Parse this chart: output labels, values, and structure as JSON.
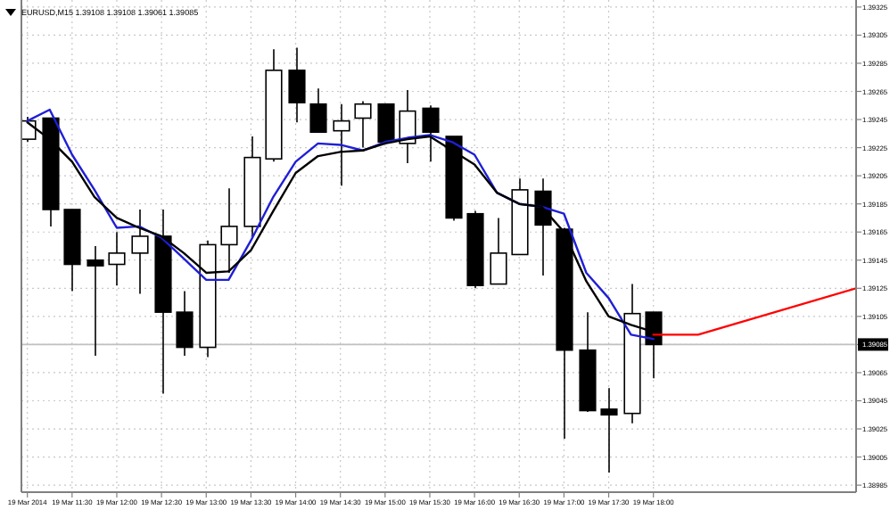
{
  "chart_data": {
    "type": "candlestick",
    "title": "EURUSD,M15  1.39108 1.39108 1.39061 1.39085",
    "x": [
      "2014-03-19T11:00",
      "2014-03-19T11:15",
      "2014-03-19T11:30",
      "2014-03-19T11:45",
      "2014-03-19T12:00",
      "2014-03-19T12:15",
      "2014-03-19T12:30",
      "2014-03-19T12:45",
      "2014-03-19T13:00",
      "2014-03-19T13:15",
      "2014-03-19T13:30",
      "2014-03-19T13:45",
      "2014-03-19T14:00",
      "2014-03-19T14:15",
      "2014-03-19T14:30",
      "2014-03-19T14:45",
      "2014-03-19T15:00",
      "2014-03-19T15:15",
      "2014-03-19T15:30",
      "2014-03-19T15:45",
      "2014-03-19T16:00",
      "2014-03-19T16:15",
      "2014-03-19T16:30",
      "2014-03-19T16:45",
      "2014-03-19T17:00",
      "2014-03-19T17:15",
      "2014-03-19T17:30",
      "2014-03-19T17:45",
      "2014-03-19T18:00"
    ],
    "ohlc": [
      [
        1.39231,
        1.39247,
        1.39229,
        1.39244
      ],
      [
        1.39246,
        1.39246,
        1.39169,
        1.39181
      ],
      [
        1.39181,
        1.39181,
        1.39123,
        1.39142
      ],
      [
        1.39145,
        1.39155,
        1.39077,
        1.39141
      ],
      [
        1.39142,
        1.39165,
        1.39127,
        1.3915
      ],
      [
        1.3915,
        1.39181,
        1.39121,
        1.39162
      ],
      [
        1.39162,
        1.39181,
        1.3905,
        1.39108
      ],
      [
        1.39108,
        1.39123,
        1.39077,
        1.39083
      ],
      [
        1.39083,
        1.39159,
        1.39076,
        1.39156
      ],
      [
        1.39156,
        1.39196,
        1.39136,
        1.39169
      ],
      [
        1.39169,
        1.39233,
        1.39162,
        1.39218
      ],
      [
        1.39217,
        1.39295,
        1.39215,
        1.3928
      ],
      [
        1.3928,
        1.39296,
        1.39243,
        1.39257
      ],
      [
        1.39256,
        1.39267,
        1.39236,
        1.39236
      ],
      [
        1.39237,
        1.39256,
        1.39198,
        1.39244
      ],
      [
        1.39246,
        1.39258,
        1.39225,
        1.39256
      ],
      [
        1.39256,
        1.39256,
        1.39229,
        1.39229
      ],
      [
        1.39228,
        1.39266,
        1.39214,
        1.39251
      ],
      [
        1.39253,
        1.39255,
        1.39215,
        1.39236
      ],
      [
        1.39233,
        1.39233,
        1.39173,
        1.39175
      ],
      [
        1.39178,
        1.3918,
        1.39125,
        1.39127
      ],
      [
        1.39128,
        1.39175,
        1.39128,
        1.3915
      ],
      [
        1.39149,
        1.39203,
        1.39149,
        1.39195
      ],
      [
        1.39194,
        1.39203,
        1.39134,
        1.3917
      ],
      [
        1.39167,
        1.39168,
        1.39018,
        1.39081
      ],
      [
        1.39081,
        1.39108,
        1.39037,
        1.39038
      ],
      [
        1.39039,
        1.39054,
        1.38994,
        1.39035
      ],
      [
        1.39036,
        1.39128,
        1.39029,
        1.39107
      ],
      [
        1.39108,
        1.39108,
        1.39061,
        1.39085
      ]
    ],
    "series": [
      {
        "type": "line",
        "color": "#1f1fd6",
        "values": [
          1.39244,
          1.39252,
          1.3922,
          1.39195,
          1.39168,
          1.39169,
          1.39161,
          1.39146,
          1.39131,
          1.39131,
          1.39159,
          1.3919,
          1.39215,
          1.39228,
          1.39227,
          1.39223,
          1.39229,
          1.39232,
          1.39234,
          1.39229,
          1.3922,
          1.39193,
          1.39185,
          1.39183,
          1.39178,
          1.39136,
          1.39118,
          1.39092,
          1.39089
        ]
      },
      {
        "type": "line",
        "color": "#000000",
        "values": [
          1.39243,
          1.39231,
          1.39215,
          1.3919,
          1.39175,
          1.39168,
          1.39162,
          1.3915,
          1.39136,
          1.39137,
          1.39152,
          1.3918,
          1.39207,
          1.39219,
          1.39222,
          1.39223,
          1.39228,
          1.39231,
          1.39233,
          1.39223,
          1.39213,
          1.39193,
          1.39185,
          1.39183,
          1.39165,
          1.3913,
          1.39105,
          1.39099,
          1.39094
        ]
      },
      {
        "type": "line",
        "color": "#ff0000",
        "x": [
          "2014-03-19T18:00",
          "2014-03-19T18:30",
          "2014-03-19T20:16"
        ],
        "values": [
          1.39092,
          1.39092,
          1.39125
        ]
      }
    ],
    "xlim": [
      "2014-03-19T10:56",
      "2014-03-19T20:16"
    ],
    "xticks": [
      {
        "value": "2014-03-19T11:00",
        "label": "19 Mar 2014"
      },
      {
        "value": "2014-03-19T11:30",
        "label": "19 Mar 11:30"
      },
      {
        "value": "2014-03-19T12:00",
        "label": "19 Mar 12:00"
      },
      {
        "value": "2014-03-19T12:30",
        "label": "19 Mar 12:30"
      },
      {
        "value": "2014-03-19T13:00",
        "label": "19 Mar 13:00"
      },
      {
        "value": "2014-03-19T13:30",
        "label": "19 Mar 13:30"
      },
      {
        "value": "2014-03-19T14:00",
        "label": "19 Mar 14:00"
      },
      {
        "value": "2014-03-19T14:30",
        "label": "19 Mar 14:30"
      },
      {
        "value": "2014-03-19T15:00",
        "label": "19 Mar 15:00"
      },
      {
        "value": "2014-03-19T15:30",
        "label": "19 Mar 15:30"
      },
      {
        "value": "2014-03-19T16:00",
        "label": "19 Mar 16:00"
      },
      {
        "value": "2014-03-19T16:30",
        "label": "19 Mar 16:30"
      },
      {
        "value": "2014-03-19T17:00",
        "label": "19 Mar 17:00"
      },
      {
        "value": "2014-03-19T17:30",
        "label": "19 Mar 17:30"
      },
      {
        "value": "2014-03-19T18:00",
        "label": "19 Mar 18:00"
      }
    ],
    "ylim": [
      1.3898,
      1.3933
    ],
    "yticks": [
      1.38985,
      1.39005,
      1.39025,
      1.39045,
      1.39065,
      {
        "value": 1.39085,
        "label": null
      },
      1.39105,
      1.39125,
      1.39145,
      1.39165,
      1.39185,
      1.39205,
      1.39225,
      1.39245,
      1.39265,
      1.39285,
      1.39305,
      1.39325
    ],
    "grid": true,
    "ref_lines": [
      {
        "axis": "y",
        "value": 1.39085,
        "label": "1.39085",
        "color": "#c0c0c0"
      }
    ]
  }
}
